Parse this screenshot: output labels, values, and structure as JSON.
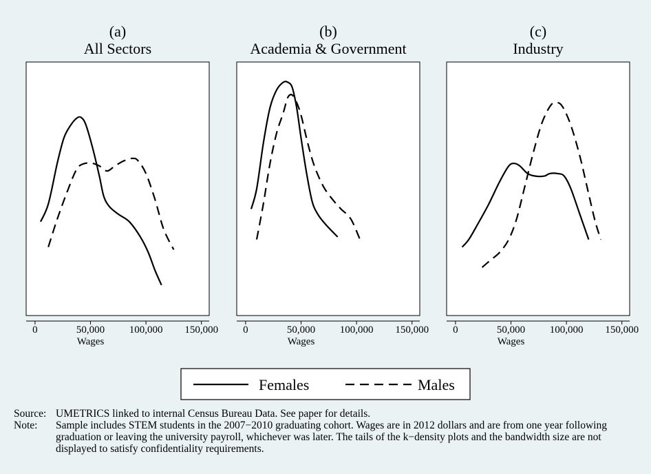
{
  "chart_data": [
    {
      "type": "line",
      "title": "(a)",
      "subtitle": "All Sectors",
      "xlabel": "Wages",
      "ylabel": "",
      "xlim": [
        -8000,
        157000
      ],
      "ylim": [
        0,
        1
      ],
      "xticks": [
        "0",
        "50,000",
        "100,000",
        "150,000"
      ],
      "grid": false,
      "series": [
        {
          "name": "Females",
          "style": "solid",
          "x": [
            5000,
            12000,
            20000,
            26000,
            32000,
            38000,
            42000,
            46000,
            52000,
            58000,
            62000,
            67000,
            75000,
            85000,
            95000,
            102000,
            108000,
            114000
          ],
          "y": [
            0.37,
            0.44,
            0.6,
            0.7,
            0.75,
            0.78,
            0.78,
            0.75,
            0.66,
            0.55,
            0.47,
            0.43,
            0.4,
            0.37,
            0.31,
            0.25,
            0.18,
            0.12
          ]
        },
        {
          "name": "Males",
          "style": "dashed",
          "x": [
            12000,
            20000,
            30000,
            38000,
            45000,
            52000,
            58000,
            65000,
            72000,
            80000,
            88000,
            93000,
            100000,
            108000,
            116000,
            125000
          ],
          "y": [
            0.27,
            0.38,
            0.5,
            0.58,
            0.6,
            0.6,
            0.59,
            0.57,
            0.59,
            0.61,
            0.62,
            0.61,
            0.56,
            0.46,
            0.34,
            0.26
          ]
        }
      ]
    },
    {
      "type": "line",
      "title": "(b)",
      "subtitle": "Academia & Government",
      "xlabel": "Wages",
      "ylabel": "",
      "xlim": [
        -8000,
        157000
      ],
      "ylim": [
        0,
        1
      ],
      "xticks": [
        "0",
        "50,000",
        "100,000",
        "150,000"
      ],
      "grid": false,
      "series": [
        {
          "name": "Females",
          "style": "solid",
          "x": [
            5000,
            10000,
            16000,
            22000,
            28000,
            34000,
            38000,
            42000,
            46000,
            50000,
            55000,
            60000,
            65000,
            72000,
            83000
          ],
          "y": [
            0.42,
            0.5,
            0.68,
            0.82,
            0.89,
            0.92,
            0.92,
            0.9,
            0.82,
            0.7,
            0.56,
            0.45,
            0.4,
            0.36,
            0.31
          ]
        },
        {
          "name": "Males",
          "style": "dashed",
          "x": [
            10000,
            16000,
            22000,
            28000,
            34000,
            38000,
            42000,
            46000,
            50000,
            56000,
            62000,
            70000,
            78000,
            86000,
            95000,
            104000
          ],
          "y": [
            0.3,
            0.44,
            0.6,
            0.72,
            0.8,
            0.86,
            0.87,
            0.84,
            0.79,
            0.68,
            0.59,
            0.51,
            0.46,
            0.42,
            0.38,
            0.29
          ]
        }
      ]
    },
    {
      "type": "line",
      "title": "(c)",
      "subtitle": "Industry",
      "xlabel": "Wages",
      "ylabel": "",
      "xlim": [
        -8000,
        157000
      ],
      "ylim": [
        0,
        1
      ],
      "xticks": [
        "0",
        "50,000",
        "100,000",
        "150,000"
      ],
      "grid": false,
      "series": [
        {
          "name": "Females",
          "style": "solid",
          "x": [
            6000,
            12000,
            20000,
            30000,
            40000,
            48000,
            53000,
            58000,
            65000,
            72000,
            80000,
            85000,
            92000,
            98000,
            104000,
            112000,
            120000
          ],
          "y": [
            0.27,
            0.3,
            0.36,
            0.44,
            0.53,
            0.59,
            0.6,
            0.59,
            0.56,
            0.55,
            0.55,
            0.56,
            0.56,
            0.55,
            0.5,
            0.4,
            0.3
          ]
        },
        {
          "name": "Males",
          "style": "dashed",
          "x": [
            24000,
            32000,
            40000,
            48000,
            55000,
            62000,
            70000,
            78000,
            86000,
            92000,
            97000,
            104000,
            112000,
            120000,
            126000,
            131000
          ],
          "y": [
            0.19,
            0.22,
            0.25,
            0.3,
            0.38,
            0.5,
            0.64,
            0.76,
            0.83,
            0.84,
            0.82,
            0.75,
            0.63,
            0.48,
            0.37,
            0.3
          ]
        }
      ]
    }
  ],
  "legend": {
    "placement": "bottom-center",
    "items": [
      {
        "label": "Females",
        "style": "solid"
      },
      {
        "label": "Males",
        "style": "dashed"
      }
    ]
  },
  "notes": {
    "source_label": "Source:",
    "source_text": "UMETRICS linked to internal Census Bureau Data. See paper for details.",
    "note_label": "Note:",
    "note_text": "Sample includes STEM students in the 2007−2010 graduating cohort. Wages are in 2012 dollars and are from one year following graduation or leaving the university payroll, whichever was later. The tails of the k−density plots and the bandwidth size are not displayed to satisfy confidentiality requirements."
  },
  "colors": {
    "background": "#eaf2f3",
    "plot_area": "#ffffff",
    "lines": "#000000"
  }
}
